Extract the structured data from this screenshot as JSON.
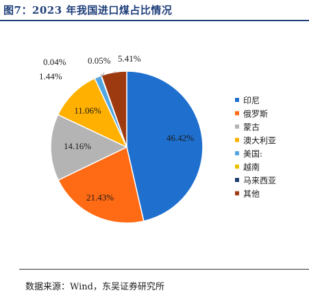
{
  "figure": {
    "title": "图7：2023 年我国进口煤占比情况",
    "source": "数据来源：Wind，东吴证券研究所"
  },
  "chart_data": {
    "type": "pie",
    "title": "",
    "legend_position": "right",
    "slices": [
      {
        "name": "印尼",
        "value": 46.42,
        "label": "46.42%",
        "color": "#1f6fcf"
      },
      {
        "name": "俄罗斯",
        "value": 21.43,
        "label": "21.43%",
        "color": "#ff6a14"
      },
      {
        "name": "蒙古",
        "value": 14.16,
        "label": "14.16%",
        "color": "#b4b4b4"
      },
      {
        "name": "澳大利亚",
        "value": 11.06,
        "label": "11.06%",
        "color": "#ffb000"
      },
      {
        "name": "美国:",
        "value": 1.44,
        "label": "1.44%",
        "color": "#52a5e0"
      },
      {
        "name": "越南",
        "value": 0.04,
        "label": "0.04%",
        "color": "#e8c000"
      },
      {
        "name": "马来西亚",
        "value": 0.05,
        "label": "0.05%",
        "color": "#1d3c6e"
      },
      {
        "name": "其他",
        "value": 5.41,
        "label": "5.41%",
        "color": "#9e3a10"
      }
    ]
  }
}
